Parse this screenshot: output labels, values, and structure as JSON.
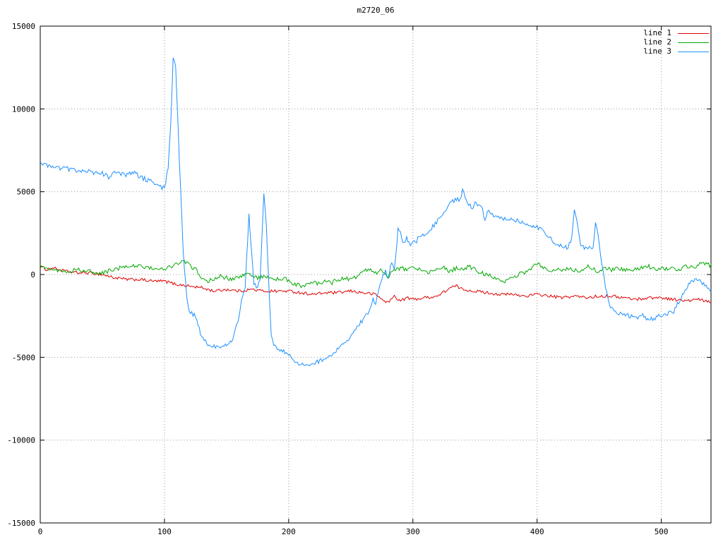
{
  "chart_data": {
    "type": "line",
    "title": "m2720_06",
    "xlabel": "",
    "ylabel": "",
    "xlim": [
      0,
      540
    ],
    "ylim": [
      -15000,
      15000
    ],
    "xticks": [
      0,
      100,
      200,
      300,
      400,
      500
    ],
    "yticks": [
      -15000,
      -10000,
      -5000,
      0,
      5000,
      10000,
      15000
    ],
    "grid": true,
    "grid_style": "dotted",
    "legend_position": "top-right",
    "background_color": "#ffffff",
    "series": [
      {
        "name": "line 1",
        "color": "#e00000",
        "noise_amp": 90,
        "points": [
          [
            0,
            500
          ],
          [
            5,
            300
          ],
          [
            10,
            400
          ],
          [
            20,
            200
          ],
          [
            30,
            100
          ],
          [
            40,
            100
          ],
          [
            50,
            0
          ],
          [
            60,
            -200
          ],
          [
            70,
            -300
          ],
          [
            80,
            -300
          ],
          [
            90,
            -400
          ],
          [
            100,
            -400
          ],
          [
            110,
            -600
          ],
          [
            120,
            -700
          ],
          [
            130,
            -800
          ],
          [
            140,
            -1000
          ],
          [
            150,
            -900
          ],
          [
            160,
            -1000
          ],
          [
            170,
            -900
          ],
          [
            180,
            -1000
          ],
          [
            190,
            -1000
          ],
          [
            200,
            -1000
          ],
          [
            210,
            -1100
          ],
          [
            220,
            -1200
          ],
          [
            230,
            -1100
          ],
          [
            240,
            -1100
          ],
          [
            250,
            -1000
          ],
          [
            260,
            -1100
          ],
          [
            270,
            -1200
          ],
          [
            275,
            -1500
          ],
          [
            280,
            -1700
          ],
          [
            285,
            -1300
          ],
          [
            290,
            -1600
          ],
          [
            295,
            -1400
          ],
          [
            300,
            -1500
          ],
          [
            310,
            -1400
          ],
          [
            320,
            -1300
          ],
          [
            330,
            -800
          ],
          [
            335,
            -700
          ],
          [
            340,
            -900
          ],
          [
            350,
            -1000
          ],
          [
            360,
            -1100
          ],
          [
            370,
            -1200
          ],
          [
            380,
            -1200
          ],
          [
            390,
            -1300
          ],
          [
            400,
            -1200
          ],
          [
            410,
            -1300
          ],
          [
            420,
            -1400
          ],
          [
            430,
            -1300
          ],
          [
            440,
            -1400
          ],
          [
            450,
            -1300
          ],
          [
            460,
            -1300
          ],
          [
            470,
            -1400
          ],
          [
            480,
            -1500
          ],
          [
            490,
            -1400
          ],
          [
            500,
            -1400
          ],
          [
            510,
            -1500
          ],
          [
            520,
            -1600
          ],
          [
            530,
            -1500
          ],
          [
            540,
            -1700
          ]
        ]
      },
      {
        "name": "line 2",
        "color": "#00a800",
        "noise_amp": 130,
        "points": [
          [
            0,
            600
          ],
          [
            10,
            300
          ],
          [
            20,
            200
          ],
          [
            30,
            300
          ],
          [
            40,
            200
          ],
          [
            50,
            100
          ],
          [
            60,
            300
          ],
          [
            70,
            500
          ],
          [
            80,
            500
          ],
          [
            90,
            400
          ],
          [
            100,
            300
          ],
          [
            105,
            500
          ],
          [
            110,
            700
          ],
          [
            115,
            800
          ],
          [
            120,
            600
          ],
          [
            125,
            300
          ],
          [
            130,
            -200
          ],
          [
            135,
            -400
          ],
          [
            140,
            -300
          ],
          [
            145,
            -100
          ],
          [
            150,
            -200
          ],
          [
            155,
            -300
          ],
          [
            160,
            -100
          ],
          [
            165,
            0
          ],
          [
            170,
            -100
          ],
          [
            175,
            -200
          ],
          [
            180,
            -100
          ],
          [
            185,
            -200
          ],
          [
            190,
            -300
          ],
          [
            195,
            -200
          ],
          [
            200,
            -400
          ],
          [
            205,
            -600
          ],
          [
            210,
            -700
          ],
          [
            215,
            -600
          ],
          [
            220,
            -500
          ],
          [
            225,
            -600
          ],
          [
            230,
            -400
          ],
          [
            235,
            -500
          ],
          [
            240,
            -300
          ],
          [
            245,
            -200
          ],
          [
            250,
            -300
          ],
          [
            255,
            -100
          ],
          [
            260,
            200
          ],
          [
            265,
            300
          ],
          [
            270,
            100
          ],
          [
            275,
            300
          ],
          [
            280,
            -100
          ],
          [
            285,
            200
          ],
          [
            290,
            400
          ],
          [
            295,
            300
          ],
          [
            300,
            500
          ],
          [
            305,
            300
          ],
          [
            310,
            100
          ],
          [
            315,
            200
          ],
          [
            320,
            300
          ],
          [
            325,
            400
          ],
          [
            330,
            200
          ],
          [
            335,
            400
          ],
          [
            340,
            300
          ],
          [
            345,
            500
          ],
          [
            350,
            300
          ],
          [
            355,
            100
          ],
          [
            360,
            0
          ],
          [
            365,
            -200
          ],
          [
            370,
            -300
          ],
          [
            375,
            -400
          ],
          [
            380,
            -200
          ],
          [
            385,
            0
          ],
          [
            390,
            100
          ],
          [
            395,
            300
          ],
          [
            400,
            700
          ],
          [
            405,
            400
          ],
          [
            410,
            200
          ],
          [
            415,
            300
          ],
          [
            420,
            200
          ],
          [
            425,
            400
          ],
          [
            430,
            300
          ],
          [
            435,
            200
          ],
          [
            440,
            500
          ],
          [
            445,
            300
          ],
          [
            450,
            200
          ],
          [
            455,
            400
          ],
          [
            460,
            300
          ],
          [
            465,
            400
          ],
          [
            470,
            300
          ],
          [
            475,
            200
          ],
          [
            480,
            300
          ],
          [
            485,
            400
          ],
          [
            490,
            500
          ],
          [
            495,
            300
          ],
          [
            500,
            400
          ],
          [
            505,
            300
          ],
          [
            510,
            400
          ],
          [
            515,
            300
          ],
          [
            520,
            500
          ],
          [
            525,
            400
          ],
          [
            530,
            600
          ],
          [
            535,
            700
          ],
          [
            540,
            500
          ]
        ]
      },
      {
        "name": "line 3",
        "color": "#1e90ff",
        "noise_amp": 140,
        "points": [
          [
            0,
            6700
          ],
          [
            10,
            6500
          ],
          [
            20,
            6400
          ],
          [
            30,
            6300
          ],
          [
            40,
            6200
          ],
          [
            50,
            6100
          ],
          [
            55,
            5900
          ],
          [
            60,
            6100
          ],
          [
            70,
            6000
          ],
          [
            75,
            6200
          ],
          [
            80,
            5900
          ],
          [
            90,
            5600
          ],
          [
            95,
            5300
          ],
          [
            100,
            5200
          ],
          [
            103,
            6500
          ],
          [
            105,
            9000
          ],
          [
            107,
            13100
          ],
          [
            109,
            12500
          ],
          [
            112,
            7000
          ],
          [
            115,
            1500
          ],
          [
            118,
            -1500
          ],
          [
            120,
            -2200
          ],
          [
            125,
            -2500
          ],
          [
            130,
            -3800
          ],
          [
            135,
            -4200
          ],
          [
            140,
            -4300
          ],
          [
            145,
            -4400
          ],
          [
            150,
            -4300
          ],
          [
            155,
            -4000
          ],
          [
            160,
            -2500
          ],
          [
            163,
            -1200
          ],
          [
            165,
            -700
          ],
          [
            168,
            3600
          ],
          [
            170,
            1500
          ],
          [
            172,
            -500
          ],
          [
            175,
            -800
          ],
          [
            177,
            -300
          ],
          [
            180,
            5000
          ],
          [
            182,
            3000
          ],
          [
            184,
            -500
          ],
          [
            186,
            -3800
          ],
          [
            190,
            -4500
          ],
          [
            195,
            -4600
          ],
          [
            200,
            -4800
          ],
          [
            205,
            -5200
          ],
          [
            210,
            -5400
          ],
          [
            215,
            -5500
          ],
          [
            220,
            -5400
          ],
          [
            225,
            -5200
          ],
          [
            230,
            -5000
          ],
          [
            235,
            -4800
          ],
          [
            240,
            -4500
          ],
          [
            245,
            -4200
          ],
          [
            250,
            -3800
          ],
          [
            255,
            -3200
          ],
          [
            260,
            -2700
          ],
          [
            265,
            -2200
          ],
          [
            268,
            -1500
          ],
          [
            270,
            -1800
          ],
          [
            272,
            -1000
          ],
          [
            275,
            -300
          ],
          [
            278,
            300
          ],
          [
            280,
            -200
          ],
          [
            283,
            800
          ],
          [
            285,
            200
          ],
          [
            288,
            2700
          ],
          [
            290,
            2500
          ],
          [
            292,
            1800
          ],
          [
            295,
            2200
          ],
          [
            298,
            1700
          ],
          [
            300,
            2100
          ],
          [
            303,
            1900
          ],
          [
            305,
            2400
          ],
          [
            310,
            2300
          ],
          [
            315,
            2800
          ],
          [
            320,
            3300
          ],
          [
            325,
            3800
          ],
          [
            330,
            4300
          ],
          [
            335,
            4600
          ],
          [
            338,
            4500
          ],
          [
            340,
            5100
          ],
          [
            342,
            4600
          ],
          [
            345,
            4300
          ],
          [
            348,
            3900
          ],
          [
            350,
            4300
          ],
          [
            355,
            4100
          ],
          [
            358,
            3400
          ],
          [
            360,
            3800
          ],
          [
            365,
            3600
          ],
          [
            370,
            3500
          ],
          [
            375,
            3300
          ],
          [
            380,
            3400
          ],
          [
            385,
            3200
          ],
          [
            390,
            3100
          ],
          [
            395,
            3000
          ],
          [
            400,
            2900
          ],
          [
            405,
            2600
          ],
          [
            410,
            2200
          ],
          [
            415,
            1900
          ],
          [
            420,
            1700
          ],
          [
            425,
            1600
          ],
          [
            428,
            2200
          ],
          [
            430,
            4000
          ],
          [
            432,
            3300
          ],
          [
            435,
            1800
          ],
          [
            440,
            1500
          ],
          [
            443,
            1600
          ],
          [
            445,
            1700
          ],
          [
            447,
            3000
          ],
          [
            449,
            2500
          ],
          [
            452,
            700
          ],
          [
            455,
            -700
          ],
          [
            458,
            -1800
          ],
          [
            460,
            -2100
          ],
          [
            465,
            -2300
          ],
          [
            470,
            -2400
          ],
          [
            475,
            -2500
          ],
          [
            480,
            -2600
          ],
          [
            485,
            -2500
          ],
          [
            490,
            -2700
          ],
          [
            495,
            -2600
          ],
          [
            500,
            -2500
          ],
          [
            505,
            -2400
          ],
          [
            510,
            -2200
          ],
          [
            515,
            -1500
          ],
          [
            520,
            -800
          ],
          [
            525,
            -400
          ],
          [
            530,
            -300
          ],
          [
            535,
            -700
          ],
          [
            540,
            -1000
          ]
        ]
      }
    ]
  }
}
